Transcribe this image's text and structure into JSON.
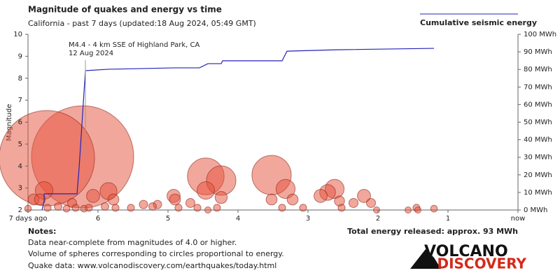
{
  "chart_data": {
    "type": "scatter",
    "title": "Magnitude of quakes and energy vs time",
    "subtitle": "California - past 7 days (updated:18 Aug 2024, 05:49 GMT)",
    "ylabel": "Magnitude",
    "annotations": [
      "M4.4 - 4 km SSE of Highland Park, CA",
      "12 Aug 2024"
    ],
    "xlim": [
      7,
      0
    ],
    "xticks": [
      {
        "value": 7,
        "label": "7 days ago"
      },
      6,
      5,
      4,
      3,
      2,
      1,
      {
        "value": 0,
        "label": "now"
      }
    ],
    "ylim": [
      2,
      10
    ],
    "yticks": [
      2,
      3,
      4,
      5,
      6,
      7,
      8,
      9,
      10
    ],
    "y2lim": [
      0,
      100
    ],
    "y2ticks": [
      {
        "value": 0,
        "label": "0 MWh"
      },
      {
        "value": 10,
        "label": "10 MWh"
      },
      {
        "value": 20,
        "label": "20 MWh"
      },
      {
        "value": 30,
        "label": "30 MWh"
      },
      {
        "value": 40,
        "label": "40 MWh"
      },
      {
        "value": 50,
        "label": "50 MWh"
      },
      {
        "value": 60,
        "label": "60 MWh"
      },
      {
        "value": 70,
        "label": "70 MWh"
      },
      {
        "value": 80,
        "label": "80 MWh"
      },
      {
        "value": 90,
        "label": "90 MWh"
      },
      {
        "value": 100,
        "label": "100 MWh"
      }
    ],
    "series": [
      {
        "type": "scatter",
        "color": "#e5503a",
        "x": [
          6.22,
          6.73,
          3.52,
          4.46,
          4.24,
          3.32,
          6.77,
          4.46,
          5.85,
          2.62,
          6.07,
          2.72,
          4.92,
          2.2,
          2.82,
          6.92,
          6.83,
          5.78,
          4.9,
          4.24,
          3.52,
          3.22,
          2.55,
          6.37,
          5.35,
          5.15,
          4.68,
          2.35,
          2.1,
          6.57,
          5.9,
          5.22,
          7.0,
          6.72,
          6.45,
          6.32,
          6.2,
          6.13,
          5.75,
          5.53,
          4.85,
          4.58,
          4.43,
          4.3,
          3.37,
          3.07,
          2.52,
          2.02,
          1.57,
          1.45,
          1.43,
          1.2
        ],
        "values": [
          4.42,
          4.36,
          3.59,
          3.53,
          3.34,
          2.96,
          2.89,
          2.89,
          2.86,
          2.96,
          2.64,
          2.8,
          2.64,
          2.64,
          2.64,
          2.48,
          2.48,
          2.48,
          2.48,
          2.57,
          2.48,
          2.48,
          2.41,
          2.32,
          2.25,
          2.25,
          2.32,
          2.32,
          2.32,
          2.16,
          2.16,
          2.16,
          2.06,
          2.1,
          2.06,
          2.1,
          2.06,
          2.1,
          2.1,
          2.1,
          2.1,
          2.1,
          2.0,
          2.1,
          2.1,
          2.1,
          2.1,
          2.0,
          2.0,
          2.1,
          2.0,
          2.06
        ]
      },
      {
        "type": "line",
        "name": "Cumulative seismic energy",
        "color": "#2424b8",
        "axis": "y2",
        "x": [
          6.8,
          6.77,
          6.77,
          6.3,
          6.27,
          6.18,
          5.85,
          4.9,
          4.55,
          4.43,
          4.24,
          4.22,
          3.37,
          3.3,
          2.6,
          1.2
        ],
        "values": [
          0,
          4.8,
          9.2,
          9.2,
          23.9,
          79.3,
          80.1,
          80.9,
          80.9,
          83.3,
          83.3,
          84.9,
          84.9,
          90.4,
          91.2,
          92.0
        ]
      }
    ]
  },
  "notes": {
    "title": "Notes:",
    "lines": [
      "Data near-complete from magnitudes of 4.0 or higher.",
      "Volume of spheres corresponding to circles proportional to energy.",
      "Quake data: www.volcanodiscovery.com/earthquakes/today.html"
    ],
    "total": "Total energy released: approx. 93 MWh"
  },
  "logo": [
    "VOLCANO",
    "DISCOVERY"
  ]
}
